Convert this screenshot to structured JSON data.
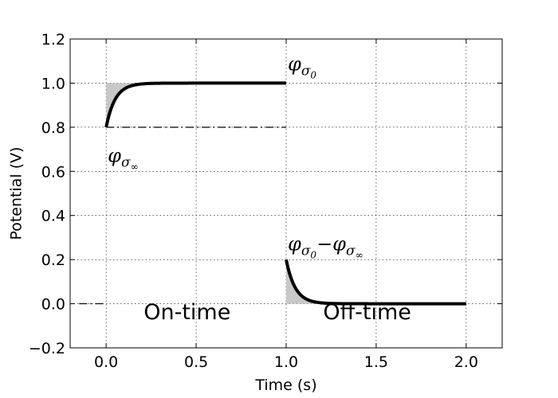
{
  "chart_data": {
    "type": "line",
    "xlabel": "Time (s)",
    "ylabel": "Potential (V)",
    "xlim": [
      -0.2,
      2.2
    ],
    "ylim": [
      -0.2,
      1.2
    ],
    "xticks": [
      0.0,
      0.5,
      1.0,
      1.5,
      2.0
    ],
    "xtick_labels": [
      "0.0",
      "0.5",
      "1.0",
      "1.5",
      "2.0"
    ],
    "yticks": [
      -0.2,
      0.0,
      0.2,
      0.4,
      0.6,
      0.8,
      1.0,
      1.2
    ],
    "ytick_labels": [
      "−0.2",
      "0.0",
      "0.2",
      "0.4",
      "0.6",
      "0.8",
      "1.0",
      "1.2"
    ],
    "grid": true,
    "series": [
      {
        "segments": [
          {
            "x_start": 0.0,
            "x_end": 1.0,
            "y_start": 0.8,
            "y_final": 1.0,
            "time_constant": 0.05,
            "shape": "rise"
          },
          {
            "x_start": 1.0,
            "x_end": 2.0,
            "y_start": 0.2,
            "y_final": 0.0,
            "time_constant": 0.05,
            "shape": "decay"
          }
        ],
        "color": "#000000",
        "linewidth": "thick"
      }
    ],
    "reference_lines": [
      {
        "style": "dash-dot",
        "x_start": 0.0,
        "x_end": 1.0,
        "y": 0.8
      },
      {
        "style": "dash-dot",
        "x_start": -0.15,
        "x_end": 0.0,
        "y": 0.0
      }
    ],
    "shaded_regions": [
      {
        "description": "between step level and on-time curve",
        "x_start": 0.0,
        "upper": 1.0,
        "color": "#c8c8c8"
      },
      {
        "description": "under off-time curve",
        "x_start": 1.0,
        "lower": 0.0,
        "color": "#c8c8c8"
      }
    ],
    "annotations": {
      "phi_sigma0": {
        "base": "φ",
        "sub": "σ",
        "subsub": "0",
        "x": 1.0,
        "y": 1.05
      },
      "phi_sigma_inf": {
        "base": "φ",
        "sub": "σ",
        "subsub": "∞",
        "x": 0.0,
        "y": 0.65
      },
      "difference": {
        "lhs_base": "φ",
        "lhs_sub": "σ",
        "lhs_subsub": "0",
        "op": "−",
        "rhs_base": "φ",
        "rhs_sub": "σ",
        "rhs_subsub": "∞",
        "x": 1.0,
        "y": 0.25
      },
      "on_time": {
        "text": "On-time",
        "x": 0.45,
        "y": -0.07
      },
      "off_time": {
        "text": "Off-time",
        "x": 1.45,
        "y": -0.07
      }
    }
  }
}
